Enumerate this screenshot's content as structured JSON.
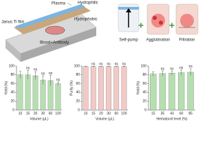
{
  "illustration": {
    "labels": [
      "Plasma",
      "Hydrophilic",
      "Janus Ti film",
      "Hydrophobic",
      "Blood+Antibody"
    ],
    "steps": [
      "Self-pump",
      "Agglutination",
      "Filtration"
    ]
  },
  "chart_data": [
    {
      "type": "bar",
      "y_label": "Yield (%)",
      "x_label": "Volume (μL)",
      "categories": [
        "10",
        "15",
        "20",
        "30",
        "60",
        "100"
      ],
      "values": [
        80,
        80,
        78,
        68,
        67,
        60
      ],
      "errors": [
        8,
        10,
        9,
        10,
        12,
        4
      ],
      "annotations": [
        null,
        "ns",
        "ns",
        "ns",
        "ns",
        "ns"
      ],
      "color": "#b6dfb0",
      "ylim": [
        0,
        100
      ],
      "yticks": [
        0,
        20,
        40,
        60,
        80,
        100
      ]
    },
    {
      "type": "bar",
      "y_label": "Purity (%)",
      "x_label": "Volume (μL)",
      "categories": [
        "10",
        "15",
        "20",
        "30",
        "60",
        "100"
      ],
      "values": [
        99,
        99,
        99,
        99,
        99,
        99
      ],
      "errors": [
        0.5,
        0.5,
        0.5,
        0.5,
        0.5,
        0.5
      ],
      "annotations": [
        null,
        "ns",
        "ns",
        "ns",
        "ns",
        "ns"
      ],
      "color": "#f2c9c6",
      "ylim": [
        0,
        100
      ],
      "yticks": [
        0,
        20,
        40,
        60,
        80,
        100
      ]
    },
    {
      "type": "bar",
      "y_label": "Yield (%)",
      "x_label": "Hematocrit level (%)",
      "categories": [
        "15",
        "35",
        "43",
        "60",
        "85"
      ],
      "values": [
        82,
        83,
        84,
        85,
        86
      ],
      "errors": [
        5,
        6,
        5,
        6,
        8
      ],
      "annotations": [
        null,
        "ns",
        "ns",
        "ns",
        "ns"
      ],
      "color": "#b6dfb0",
      "ylim": [
        0,
        100
      ],
      "yticks": [
        0,
        20,
        40,
        60,
        80,
        100
      ]
    }
  ]
}
